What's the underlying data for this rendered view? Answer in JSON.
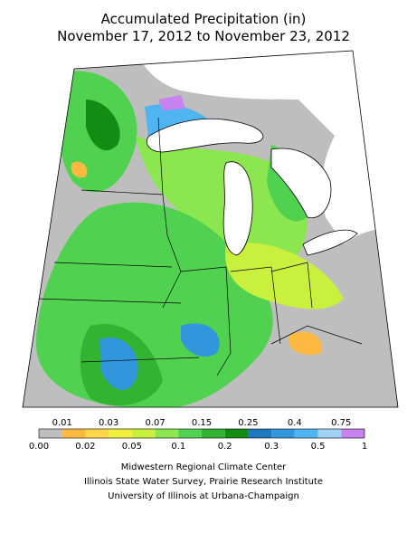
{
  "header": {
    "title": [
      "Accumulated Precipitation (in)",
      "November 17, 2012 to November 23, 2012"
    ]
  },
  "legend": {
    "labels": [
      "0.00",
      "0.01",
      "0.02",
      "0.03",
      "0.05",
      "0.07",
      "0.1",
      "0.15",
      "0.2",
      "0.25",
      "0.3",
      "0.4",
      "0.5",
      "0.75",
      "1"
    ],
    "colors": [
      "#bebebe",
      "#ffb940",
      "#ffd84a",
      "#f0f03c",
      "#c8f03c",
      "#8ce650",
      "#50d250",
      "#32b432",
      "#148c14",
      "#1e78be",
      "#3296dc",
      "#50b4f0",
      "#a0d2f5",
      "#c882f0"
    ]
  },
  "credits": [
    "Midwestern Regional Climate Center",
    "Illinois State Water Survey, Prairie Research Institute",
    "University of Illinois at Urbana-Champaign"
  ]
}
